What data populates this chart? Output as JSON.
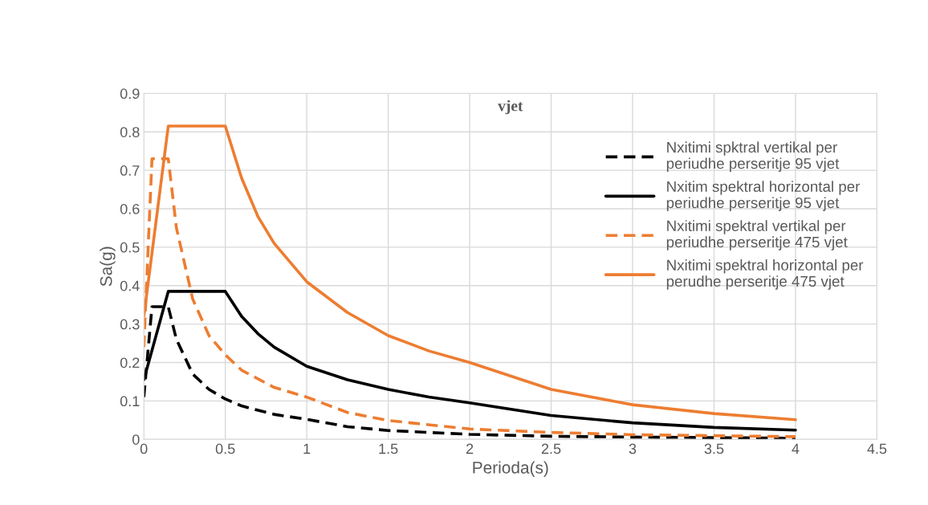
{
  "chart_data": {
    "type": "line",
    "title": "vjet",
    "xlabel": "Perioda(s)",
    "ylabel": "Sa(g)",
    "xlim": [
      0,
      4.5
    ],
    "xticks": [
      0,
      0.5,
      1,
      1.5,
      2,
      2.5,
      3,
      3.5,
      4,
      4.5
    ],
    "ylim": [
      0,
      0.9
    ],
    "yticks": [
      0,
      0.1,
      0.2,
      0.3,
      0.4,
      0.5,
      0.6,
      0.7,
      0.8,
      0.9
    ],
    "grid": true,
    "legend": "top right",
    "marker": "none",
    "series": [
      {
        "name": "Nxitimi spktral vertikal per periudhe perseritje 95 vjet",
        "color": "#000000",
        "line_style": "dashed",
        "x": [
          0,
          0.05,
          0.15,
          0.2,
          0.3,
          0.4,
          0.5,
          0.6,
          0.8,
          1,
          1.25,
          1.5,
          2,
          2.5,
          3,
          4
        ],
        "values": [
          0.11,
          0.345,
          0.345,
          0.26,
          0.17,
          0.13,
          0.105,
          0.087,
          0.065,
          0.052,
          0.033,
          0.023,
          0.013,
          0.008,
          0.006,
          0.003
        ]
      },
      {
        "name": "Nxitim spektral horizontal per periudhe perseritje 95 vjet",
        "color": "#000000",
        "line_style": "solid",
        "x": [
          0,
          0.15,
          0.5,
          0.6,
          0.7,
          0.8,
          1,
          1.25,
          1.5,
          1.75,
          2,
          2.5,
          3,
          3.5,
          4
        ],
        "values": [
          0.155,
          0.385,
          0.385,
          0.32,
          0.275,
          0.24,
          0.19,
          0.155,
          0.13,
          0.11,
          0.095,
          0.062,
          0.043,
          0.031,
          0.024
        ]
      },
      {
        "name": "Nxitimi spektral vertikal per periudhe perseritje 475 vjet",
        "color": "#ed7d31",
        "line_style": "dashed",
        "x": [
          0,
          0.05,
          0.15,
          0.2,
          0.3,
          0.4,
          0.5,
          0.6,
          0.8,
          1,
          1.25,
          1.5,
          2,
          2.5,
          3,
          4
        ],
        "values": [
          0.24,
          0.73,
          0.73,
          0.55,
          0.365,
          0.27,
          0.22,
          0.18,
          0.135,
          0.11,
          0.07,
          0.049,
          0.027,
          0.018,
          0.012,
          0.007
        ]
      },
      {
        "name": "Nxitimi spektral horizontal per perudhe perseritje 475 vjet",
        "color": "#ed7d31",
        "line_style": "solid",
        "x": [
          0,
          0.15,
          0.5,
          0.6,
          0.7,
          0.8,
          1,
          1.25,
          1.5,
          1.75,
          2,
          2.5,
          3,
          3.5,
          4
        ],
        "values": [
          0.32,
          0.815,
          0.815,
          0.68,
          0.58,
          0.51,
          0.41,
          0.33,
          0.27,
          0.23,
          0.2,
          0.13,
          0.09,
          0.067,
          0.051
        ]
      }
    ]
  }
}
